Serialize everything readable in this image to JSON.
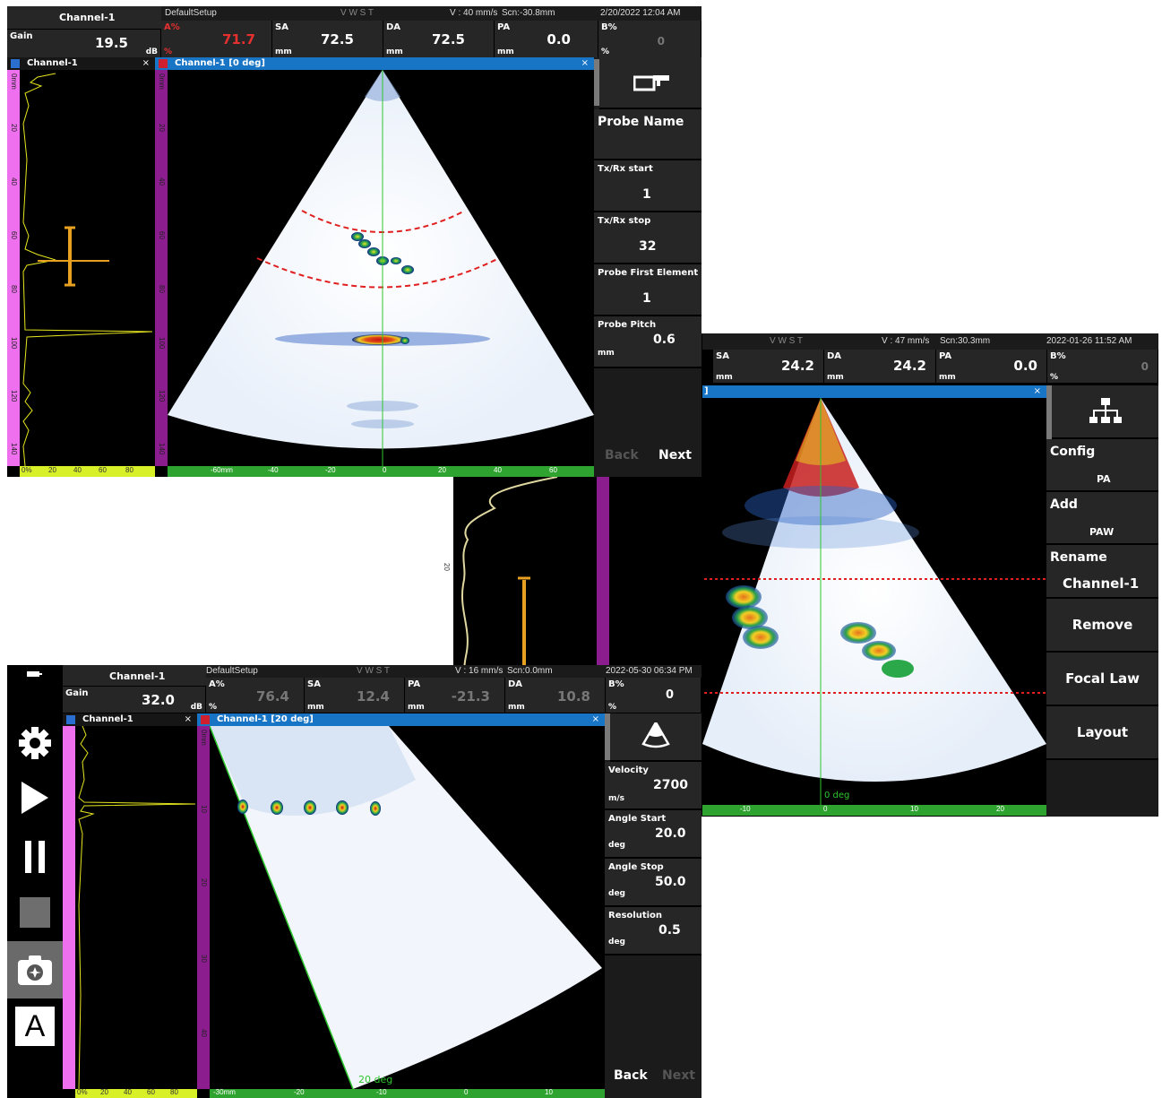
{
  "screen1": {
    "channel_name": "Channel-1",
    "setup": "DefaultSetup",
    "status_letters": "V W S T",
    "velocity": "V : 40 mm/s",
    "scan": "Scn:-30.8mm",
    "datetime": "2/20/2022 12:04 AM",
    "gain": {
      "label": "Gain",
      "value": "19.5",
      "unit": "dB"
    },
    "readouts": [
      {
        "label": "A%",
        "value": "71.7",
        "unit": "%"
      },
      {
        "label": "SA",
        "value": "72.5",
        "unit": "mm"
      },
      {
        "label": "DA",
        "value": "72.5",
        "unit": "mm"
      },
      {
        "label": "PA",
        "value": "0.0",
        "unit": "mm"
      },
      {
        "label": "B%",
        "value": "0",
        "unit": "%"
      }
    ],
    "ascan_title": "Channel-1",
    "sector_title": "Channel-1 [0 deg]",
    "close": "×",
    "left_ruler": [
      "0mm",
      "20",
      "40",
      "60",
      "80",
      "100",
      "120",
      "140"
    ],
    "sector_ruler": [
      "0mm",
      "20",
      "40",
      "60",
      "80",
      "100",
      "120",
      "140"
    ],
    "bottom_ascan_ruler": [
      "0%",
      "20",
      "40",
      "60",
      "80"
    ],
    "bottom_sector_ruler": [
      "-60mm",
      "-40",
      "-20",
      "0",
      "20",
      "40",
      "60"
    ],
    "panels": {
      "probe_name": "Probe Name",
      "txrx_start_label": "Tx/Rx start",
      "txrx_start_value": "1",
      "txrx_stop_label": "Tx/Rx stop",
      "txrx_stop_value": "32",
      "first_element_label": "Probe First Element",
      "first_element_value": "1",
      "pitch_label": "Probe Pitch",
      "pitch_value": "0.6",
      "pitch_unit": "mm"
    },
    "back": "Back",
    "next": "Next"
  },
  "screen2": {
    "status_letters": "V W S T",
    "velocity": "V : 47 mm/s",
    "scan": "Scn:30.3mm",
    "datetime": "2022-01-26 11:52 AM",
    "readouts": [
      {
        "label": "SA",
        "value": "24.2",
        "unit": "mm"
      },
      {
        "label": "DA",
        "value": "24.2",
        "unit": "mm"
      },
      {
        "label": "PA",
        "value": "0.0",
        "unit": "mm"
      },
      {
        "label": "B%",
        "value": "0",
        "unit": "%"
      }
    ],
    "sector_title_fragment": "]",
    "close": "×",
    "angle_label": "0 deg",
    "ascan_ruler": [
      "20"
    ],
    "bottom_ruler": [
      "-10",
      "0",
      "10",
      "20"
    ],
    "menu": {
      "config_label": "Config",
      "config_value": "PA",
      "add_label": "Add",
      "add_value": "PAW",
      "rename_label": "Rename",
      "rename_value": "Channel-1",
      "remove": "Remove",
      "focal_law": "Focal Law",
      "layout": "Layout"
    }
  },
  "screen3": {
    "channel_name": "Channel-1",
    "setup": "DefaultSetup",
    "status_letters": "V W S T",
    "velocity": "V : 16 mm/s",
    "scan": "Scn:0.0mm",
    "datetime": "2022-05-30 06:34 PM",
    "gain": {
      "label": "Gain",
      "value": "32.0",
      "unit": "dB"
    },
    "readouts": [
      {
        "label": "A%",
        "value": "76.4",
        "unit": "%"
      },
      {
        "label": "SA",
        "value": "12.4",
        "unit": "mm"
      },
      {
        "label": "PA",
        "value": "-21.3",
        "unit": "mm"
      },
      {
        "label": "DA",
        "value": "10.8",
        "unit": "mm"
      },
      {
        "label": "B%",
        "value": "0",
        "unit": "%"
      }
    ],
    "ascan_title": "Channel-1",
    "sector_title": "Channel-1 [20 deg]",
    "close": "×",
    "angle_label": "20 deg",
    "sector_ruler": [
      "0mm",
      "10",
      "20",
      "30",
      "40"
    ],
    "bottom_ascan_ruler": [
      "0%",
      "20",
      "40",
      "60",
      "80"
    ],
    "bottom_sector_ruler": [
      "-30mm",
      "-20",
      "-10",
      "0",
      "10"
    ],
    "panels": {
      "velocity_label": "Velocity",
      "velocity_value": "2700",
      "velocity_unit": "m/s",
      "angle_start_label": "Angle Start",
      "angle_start_value": "20.0",
      "angle_start_unit": "deg",
      "angle_stop_label": "Angle Stop",
      "angle_stop_value": "50.0",
      "angle_stop_unit": "deg",
      "resolution_label": "Resolution",
      "resolution_value": "0.5",
      "resolution_unit": "deg"
    },
    "back": "Back",
    "next": "Next",
    "toolbar_icons": [
      "battery-icon",
      "gear-icon",
      "play-icon",
      "pause-icon",
      "stop-icon",
      "camera-icon",
      "a-scan-mode-icon"
    ],
    "a_label": "A"
  }
}
